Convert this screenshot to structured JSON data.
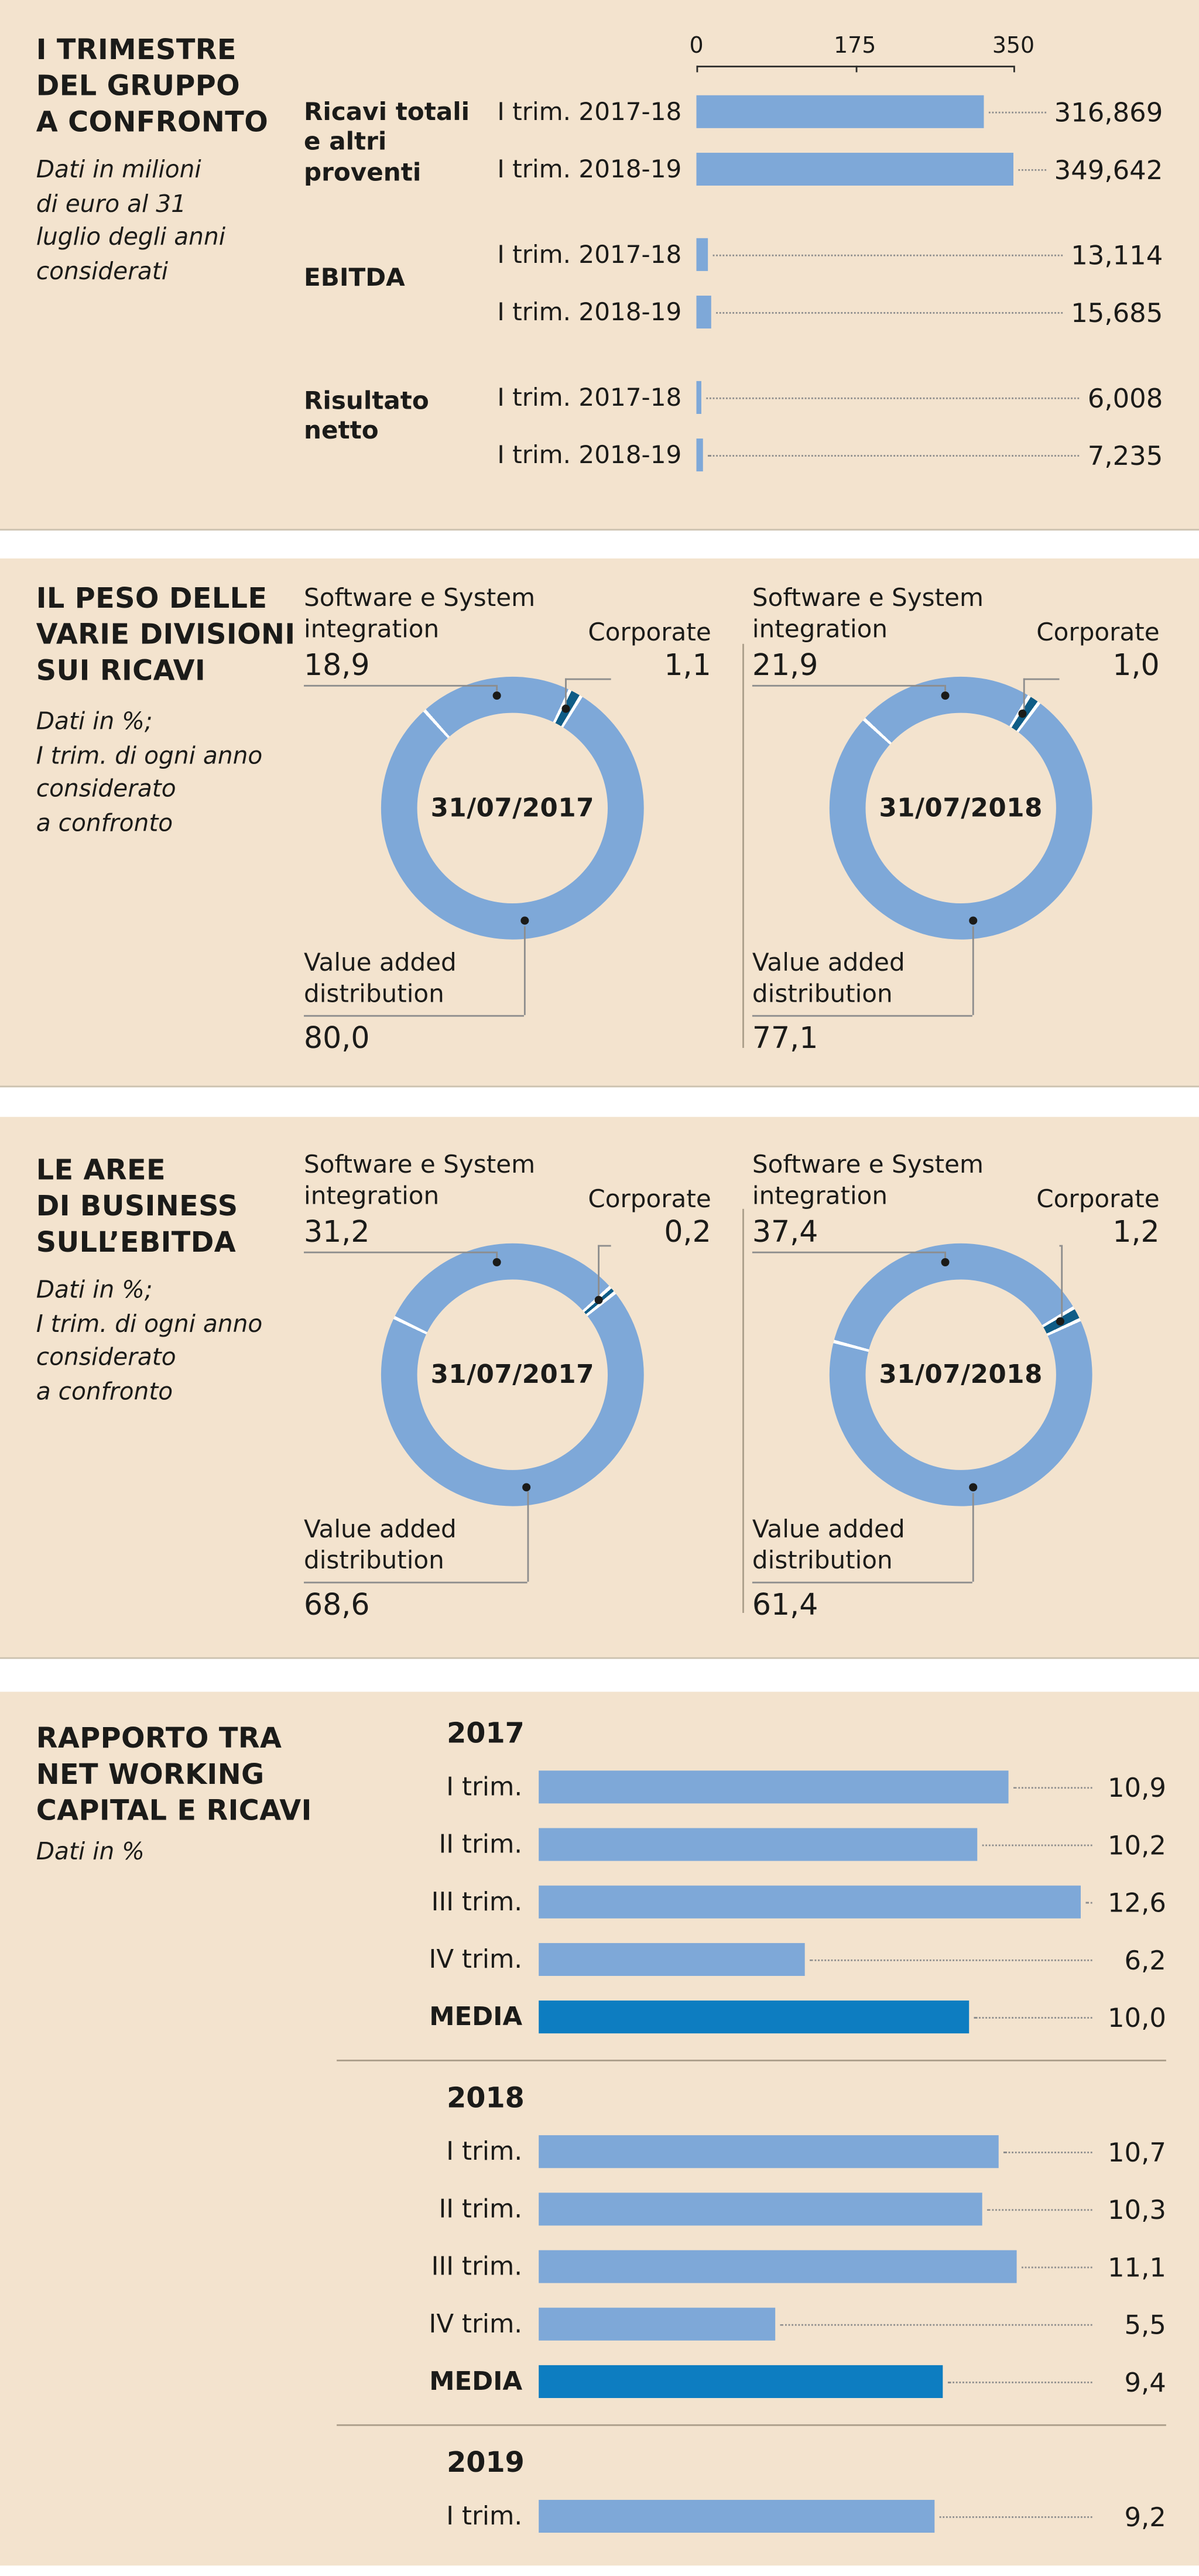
{
  "colors": {
    "background": "#f3e3ce",
    "bar": "#7ea8d8",
    "bar_dark": "#0d7dc1",
    "corporate": "#0f5c86",
    "text": "#1b1b19",
    "line": "#8d8d8d",
    "divider": "#ab9e8a"
  },
  "chart_data": [
    {
      "id": "trimestre_confronto",
      "type": "bar",
      "orientation": "horizontal",
      "title": "I TRIMESTRE\nDEL GRUPPO\nA CONFRONTO",
      "subtitle": "Dati in milioni\ndi euro al 31\nluglio degli anni\nconsiderati",
      "axis": {
        "ticks": [
          0,
          175,
          350
        ],
        "tick_labels": [
          "0",
          "175",
          "350"
        ],
        "max": 350
      },
      "groups": [
        {
          "label": "Ricavi totali\ne altri\nproventi",
          "rows": [
            {
              "label": "I trim. 2017-18",
              "value": 316.869,
              "display": "316,869"
            },
            {
              "label": "I trim. 2018-19",
              "value": 349.642,
              "display": "349,642"
            }
          ]
        },
        {
          "label": "EBITDA",
          "rows": [
            {
              "label": "I trim. 2017-18",
              "value": 13.114,
              "display": "13,114"
            },
            {
              "label": "I trim. 2018-19",
              "value": 15.685,
              "display": "15,685"
            }
          ]
        },
        {
          "label": "Risultato\nnetto",
          "rows": [
            {
              "label": "I trim. 2017-18",
              "value": 6.008,
              "display": "6,008"
            },
            {
              "label": "I trim. 2018-19",
              "value": 7.235,
              "display": "7,235"
            }
          ]
        }
      ]
    },
    {
      "id": "peso_divisioni_ricavi",
      "type": "pie",
      "title": "IL PESO DELLE\nVARIE DIVISIONI\nSUI RICAVI",
      "subtitle": "Dati in %;\nI trim. di ogni anno\nconsiderato\na confronto",
      "donuts": [
        {
          "center_label": "31/07/2017",
          "slices": [
            {
              "label": "Software e System integration",
              "value": 18.9,
              "display": "18,9"
            },
            {
              "label": "Corporate",
              "value": 1.1,
              "display": "1,1"
            },
            {
              "label": "Value added distribution",
              "value": 80.0,
              "display": "80,0"
            }
          ]
        },
        {
          "center_label": "31/07/2018",
          "slices": [
            {
              "label": "Software e System integration",
              "value": 21.9,
              "display": "21,9"
            },
            {
              "label": "Corporate",
              "value": 1.0,
              "display": "1,0"
            },
            {
              "label": "Value added distribution",
              "value": 77.1,
              "display": "77,1"
            }
          ]
        }
      ]
    },
    {
      "id": "aree_business_ebitda",
      "type": "pie",
      "title": "LE AREE\nDI BUSINESS\nSULL’EBITDA",
      "subtitle": "Dati in %;\nI trim. di ogni anno\nconsiderato\na confronto",
      "donuts": [
        {
          "center_label": "31/07/2017",
          "slices": [
            {
              "label": "Software e System integration",
              "value": 31.2,
              "display": "31,2"
            },
            {
              "label": "Corporate",
              "value": 0.2,
              "display": "0,2"
            },
            {
              "label": "Value added distribution",
              "value": 68.6,
              "display": "68,6"
            }
          ]
        },
        {
          "center_label": "31/07/2018",
          "slices": [
            {
              "label": "Software e System integration",
              "value": 37.4,
              "display": "37,4"
            },
            {
              "label": "Corporate",
              "value": 1.2,
              "display": "1,2"
            },
            {
              "label": "Value added distribution",
              "value": 61.4,
              "display": "61,4"
            }
          ]
        }
      ]
    },
    {
      "id": "net_working_capital_ricavi",
      "type": "bar",
      "orientation": "horizontal",
      "title": "RAPPORTO TRA\nNET WORKING\nCAPITAL E RICAVI",
      "subtitle": "Dati in %",
      "scale_max": 12.6,
      "years": [
        {
          "label": "2017",
          "rows": [
            {
              "label": "I trim.",
              "value": 10.9,
              "display": "10,9",
              "emphasis": false
            },
            {
              "label": "II trim.",
              "value": 10.2,
              "display": "10,2",
              "emphasis": false
            },
            {
              "label": "III trim.",
              "value": 12.6,
              "display": "12,6",
              "emphasis": false
            },
            {
              "label": "IV trim.",
              "value": 6.2,
              "display": "6,2",
              "emphasis": false
            },
            {
              "label": "MEDIA",
              "value": 10.0,
              "display": "10,0",
              "emphasis": true
            }
          ]
        },
        {
          "label": "2018",
          "rows": [
            {
              "label": "I trim.",
              "value": 10.7,
              "display": "10,7",
              "emphasis": false
            },
            {
              "label": "II trim.",
              "value": 10.3,
              "display": "10,3",
              "emphasis": false
            },
            {
              "label": "III trim.",
              "value": 11.1,
              "display": "11,1",
              "emphasis": false
            },
            {
              "label": "IV trim.",
              "value": 5.5,
              "display": "5,5",
              "emphasis": false
            },
            {
              "label": "MEDIA",
              "value": 9.4,
              "display": "9,4",
              "emphasis": true
            }
          ]
        },
        {
          "label": "2019",
          "rows": [
            {
              "label": "I trim.",
              "value": 9.2,
              "display": "9,2",
              "emphasis": false
            }
          ]
        }
      ]
    }
  ]
}
